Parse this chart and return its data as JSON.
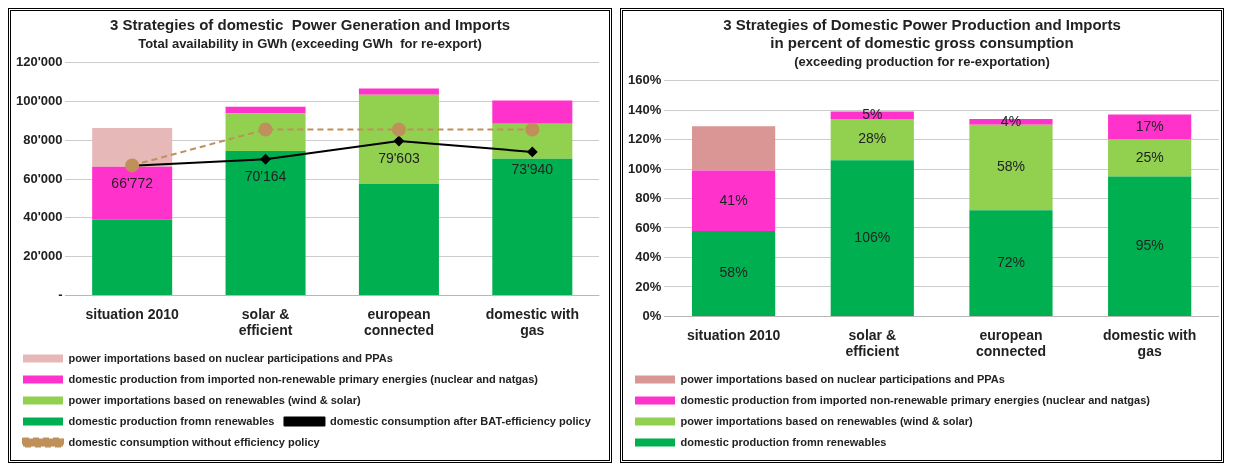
{
  "chart_data": [
    {
      "type": "bar",
      "title": "3 Strategies of domestic  Power Generation and Imports",
      "subtitle": "Total availability in GWh (exceeding GWh  for re-export)",
      "categories": [
        "situation 2010",
        "solar & efficient",
        "european connected",
        "domestic with gas"
      ],
      "stacked": true,
      "ylim": [
        0,
        120000
      ],
      "yticks": [
        {
          "value": 0,
          "label": "-"
        },
        {
          "value": 20000,
          "label": "20'000"
        },
        {
          "value": 40000,
          "label": "40'000"
        },
        {
          "value": 60000,
          "label": "60'000"
        },
        {
          "value": 80000,
          "label": "80'000"
        },
        {
          "value": 100000,
          "label": "100'000"
        },
        {
          "value": 120000,
          "label": "120'000"
        }
      ],
      "grid": "y",
      "legend": "bottom",
      "series": [
        {
          "name": "domestic production fromn renewables",
          "color": "#00b050",
          "values": [
            39000,
            74400,
            57400,
            70500
          ]
        },
        {
          "name": "power importations based on renewables (wind & solar)",
          "color": "#92d050",
          "values": [
            null,
            19500,
            46000,
            18000
          ]
        },
        {
          "name": "domestic production from imported non-renewable primary energies (nuclear and natgas)",
          "color": "#ff33cc",
          "values": [
            27300,
            3400,
            3200,
            11900
          ]
        },
        {
          "name": "power importations based on nuclear participations and PPAs",
          "color": "#e6b8b7",
          "values": [
            20000,
            null,
            null,
            null
          ]
        },
        {
          "name": "domestic consumption after BAT-efficiency policy",
          "type": "line",
          "color": "#000000",
          "marker": "diamond",
          "line_style": "solid",
          "values": [
            66772,
            70164,
            79603,
            73940
          ],
          "value_labels": [
            "66'772",
            "70'164",
            "79'603",
            "73'940"
          ]
        },
        {
          "name": "domestic consumption without efficiency policy",
          "type": "line",
          "color": "#c0905a",
          "marker": "circle",
          "line_style": "dashed",
          "values": [
            67000,
            85500,
            85500,
            85500
          ]
        }
      ]
    },
    {
      "type": "bar",
      "title": "3 Strategies of Domestic Power Production and Imports\nin percent of domestic gross consumption",
      "subtitle": "(exceeding production for re-exportation)",
      "categories": [
        "situation 2010",
        "solar & efficient",
        "european connected",
        "domestic with gas"
      ],
      "stacked": true,
      "ylim": [
        0,
        160
      ],
      "yticks": [
        {
          "value": 0,
          "label": "0%"
        },
        {
          "value": 20,
          "label": "20%"
        },
        {
          "value": 40,
          "label": "40%"
        },
        {
          "value": 60,
          "label": "60%"
        },
        {
          "value": 80,
          "label": "80%"
        },
        {
          "value": 100,
          "label": "100%"
        },
        {
          "value": 120,
          "label": "120%"
        },
        {
          "value": 140,
          "label": "140%"
        },
        {
          "value": 160,
          "label": "160%"
        }
      ],
      "grid": "y",
      "legend": "bottom",
      "series": [
        {
          "name": "domestic production fromn renewables",
          "color": "#00b050",
          "values": [
            58,
            106,
            72,
            95
          ],
          "value_labels": [
            "58%",
            "106%",
            "72%",
            "95%"
          ]
        },
        {
          "name": "power importations based on renewables (wind & solar)",
          "color": "#92d050",
          "values": [
            null,
            28,
            58,
            25
          ],
          "value_labels": [
            null,
            "28%",
            "58%",
            "25%"
          ]
        },
        {
          "name": "domestic production from imported non-renewable primary energies (nuclear and natgas)",
          "color": "#ff33cc",
          "values": [
            41,
            5,
            4,
            17
          ],
          "value_labels": [
            "41%",
            "5%",
            "4%",
            "17%"
          ]
        },
        {
          "name": "power importations based on nuclear participations and PPAs",
          "color": "#da9694",
          "values": [
            30,
            null,
            null,
            null
          ]
        }
      ]
    }
  ]
}
